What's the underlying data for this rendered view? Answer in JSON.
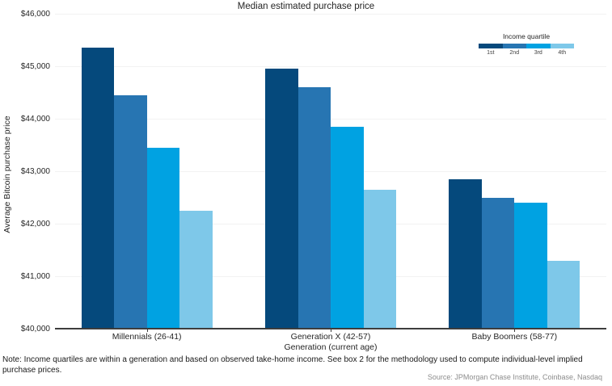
{
  "title": "Median estimated purchase price",
  "note": "Note: Income quartiles are within a generation and based on observed take-home income. See box 2 for the methodology used to compute individual-level implied purchase prices.",
  "source": "Source: JPMorgan Chase Institute, Coinbase, Nasdaq",
  "legend": {
    "title": "Income quartile",
    "items": [
      {
        "label": "1st",
        "color": "#05497c"
      },
      {
        "label": "2nd",
        "color": "#2775b2"
      },
      {
        "label": "3rd",
        "color": "#00a2e2"
      },
      {
        "label": "4th",
        "color": "#7ec8e9"
      }
    ]
  },
  "chart_data": {
    "type": "bar",
    "title": "Median estimated purchase price",
    "xlabel": "Generation (current age)",
    "ylabel": "Average Bitcoin purchase price",
    "categories": [
      "Millennials (26-41)",
      "Generation X (42-57)",
      "Baby Boomers (58-77)"
    ],
    "series": [
      {
        "name": "1st",
        "color": "#05497c",
        "values": [
          45350,
          44950,
          42850
        ]
      },
      {
        "name": "2nd",
        "color": "#2775b2",
        "values": [
          44450,
          44600,
          42500
        ]
      },
      {
        "name": "3rd",
        "color": "#00a2e2",
        "values": [
          43450,
          43850,
          42400
        ]
      },
      {
        "name": "4th",
        "color": "#7ec8e9",
        "values": [
          42250,
          42650,
          41300
        ]
      }
    ],
    "ylim": [
      40000,
      46000
    ],
    "ytick_step": 1000,
    "ytick_labels": [
      "$40,000",
      "$41,000",
      "$42,000",
      "$43,000",
      "$44,000",
      "$45,000",
      "$46,000"
    ],
    "grid": true,
    "legend_position": "top-right"
  }
}
